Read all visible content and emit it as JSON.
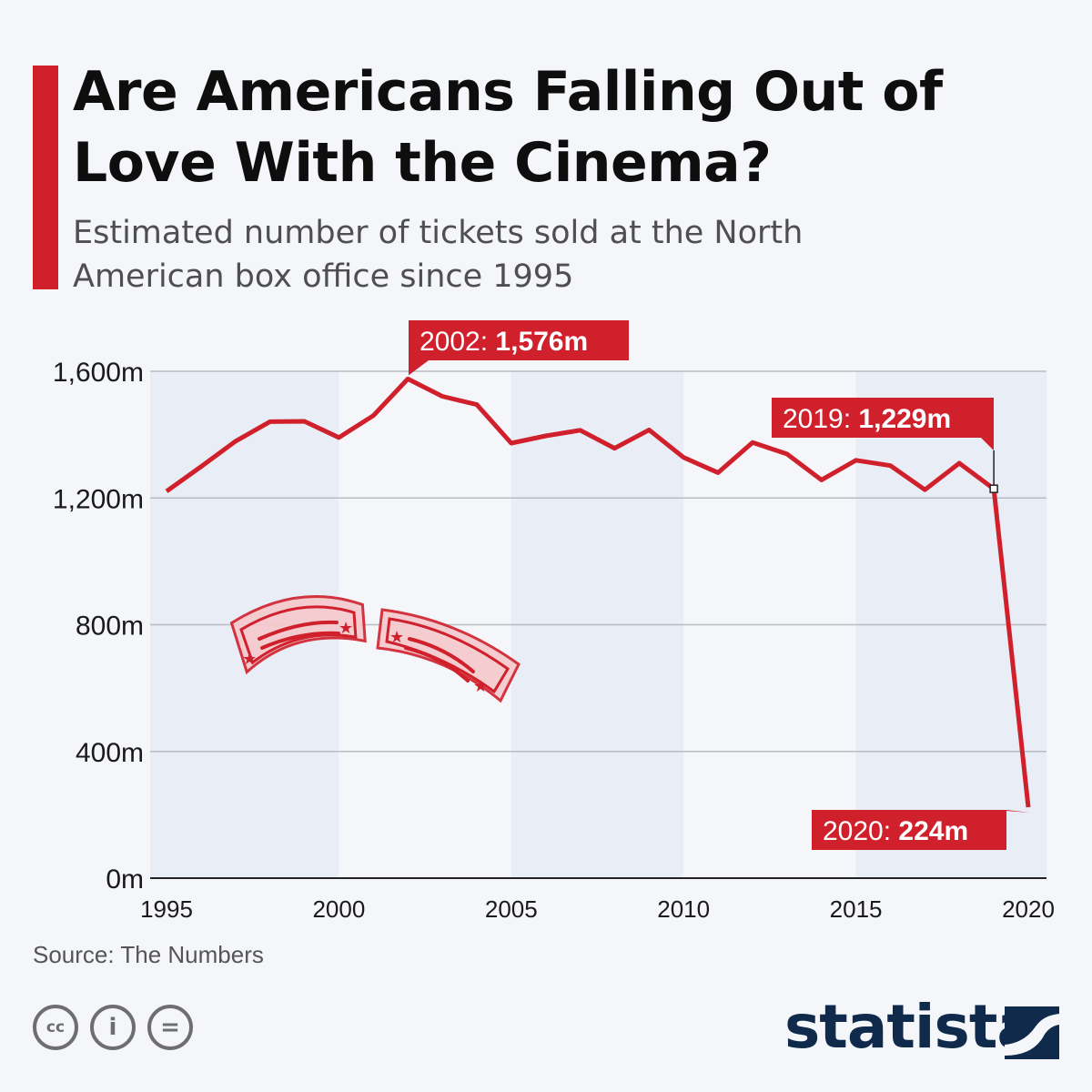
{
  "header": {
    "title": "Are Americans Falling Out of Love With the Cinema?",
    "subtitle": "Estimated number of tickets sold at the North American box office since 1995"
  },
  "source": "Source: The Numbers",
  "brand": "statista",
  "license_icons": [
    "cc-icon",
    "attribution-icon",
    "no-derivatives-icon"
  ],
  "colors": {
    "accent": "#d0202c",
    "band": "#e9edf5",
    "text": "#0e0e0e",
    "brand": "#0f2a4a"
  },
  "chart_data": {
    "type": "line",
    "title": "Are Americans Falling Out of Love With the Cinema?",
    "subtitle": "Estimated number of tickets sold at the North American box office since 1995",
    "x": [
      1995,
      1996,
      1997,
      1998,
      1999,
      2000,
      2001,
      2002,
      2003,
      2004,
      2005,
      2006,
      2007,
      2008,
      2009,
      2010,
      2011,
      2012,
      2013,
      2014,
      2015,
      2016,
      2017,
      2018,
      2019,
      2020
    ],
    "series": [
      {
        "values": [
          1221,
          1299,
          1379,
          1441,
          1442,
          1391,
          1460,
          1576,
          1521,
          1495,
          1373,
          1396,
          1414,
          1357,
          1415,
          1328,
          1280,
          1375,
          1339,
          1257,
          1319,
          1302,
          1226,
          1310,
          1229,
          224
        ]
      }
    ],
    "xlim": [
      1995,
      2020
    ],
    "ylim": [
      0,
      1600
    ],
    "x_ticks": [
      "1995",
      "2000",
      "2005",
      "2010",
      "2015",
      "2020"
    ],
    "y_ticks": [
      "0m",
      "400m",
      "800m",
      "1,200m",
      "1,600m"
    ],
    "annotations": [
      {
        "year": 2002,
        "label": "2002:",
        "value": "1,576m"
      },
      {
        "year": 2019,
        "label": "2019:",
        "value": "1,229m"
      },
      {
        "year": 2020,
        "label": "2020:",
        "value": "224m"
      }
    ],
    "grid": true,
    "legend": "none"
  }
}
